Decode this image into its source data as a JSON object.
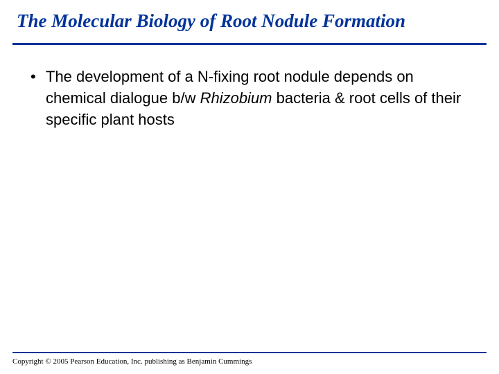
{
  "colors": {
    "title": "#003399",
    "rule": "#003399",
    "body_text": "#000000",
    "footer_rule": "#003399",
    "copyright": "#000000",
    "background": "#ffffff"
  },
  "title": "The Molecular Biology of Root Nodule Formation",
  "bullet": {
    "runs": [
      {
        "text": "The development of a N-fixing root nodule depends on chemical dialogue b/w ",
        "italic": false
      },
      {
        "text": "Rhizobium",
        "italic": true
      },
      {
        "text": " bacteria & root cells of their specific plant hosts",
        "italic": false
      }
    ]
  },
  "copyright": "Copyright © 2005 Pearson Education, Inc. publishing as Benjamin Cummings"
}
